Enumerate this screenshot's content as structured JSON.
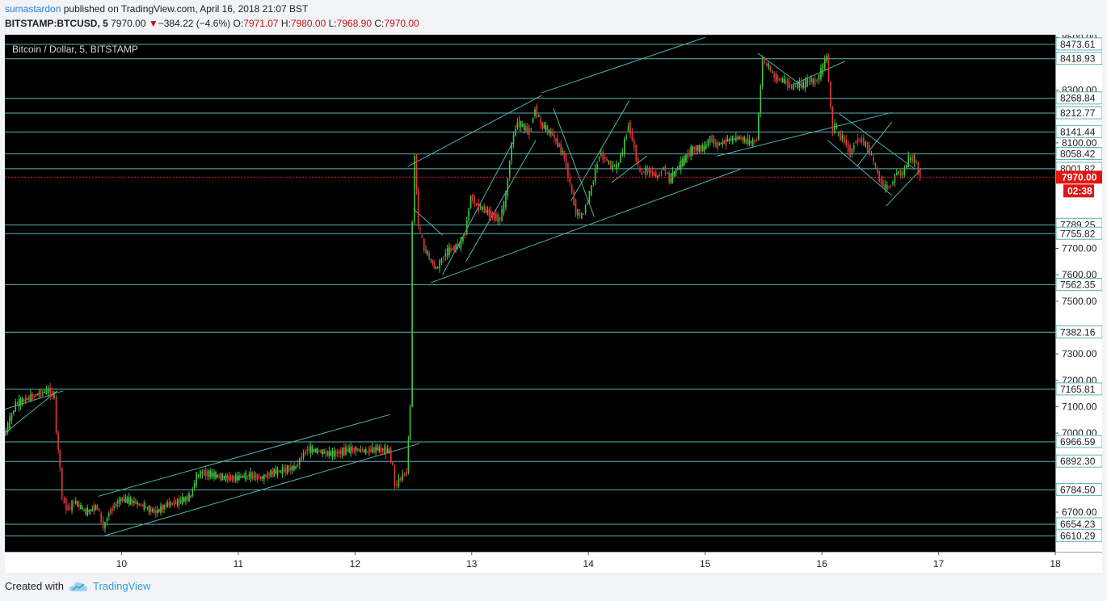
{
  "header": {
    "author": "sumastardon",
    "published": "published on TradingView.com, April 16, 2018 21:07 BST",
    "symbol": "BITSTAMP:BTCUSD, 5",
    "last": "7970.00",
    "change_arrow": "▼",
    "change": "−384.22 (−4.6%)",
    "o_label": "O:",
    "o_value": "7971.07",
    "h_label": "H:",
    "h_value": "7980.00",
    "l_label": "L:",
    "l_value": "7968.90",
    "c_label": "C:",
    "c_value": "7970.00"
  },
  "footer": {
    "created_with": "Created with",
    "brand": "TradingView"
  },
  "chart_data": {
    "type": "line",
    "title": "Bitcoin / Dollar, 5, BITSTAMP",
    "xlabel": "",
    "ylabel": "",
    "xlim": [
      9.0,
      18.0
    ],
    "ylim": [
      6550,
      8510
    ],
    "x_ticks": [
      "10",
      "11",
      "12",
      "13",
      "14",
      "15",
      "16",
      "17",
      "18"
    ],
    "x_tick_values": [
      10,
      11,
      12,
      13,
      14,
      15,
      16,
      17,
      18
    ],
    "y_ticks": [
      "8500.00",
      "8300.00",
      "8100.00",
      "7700.00",
      "7600.00",
      "7500.00",
      "7300.00",
      "7200.00",
      "7100.00",
      "7000.00",
      "6700.00"
    ],
    "y_tick_values": [
      8500,
      8300,
      8100,
      7700,
      7600,
      7500,
      7300,
      7200,
      7100,
      7000,
      6700
    ],
    "levels": [
      8473.61,
      8418.93,
      8268.84,
      8212.77,
      8141.44,
      8058.42,
      8001.82,
      7789.25,
      7755.82,
      7562.35,
      7382.16,
      7165.81,
      6966.59,
      6892.3,
      6784.5,
      6654.23,
      6610.29
    ],
    "level_labels": [
      "8473.61",
      "8418.93",
      "8268.84",
      "8212.77",
      "8141.44",
      "8058.42",
      "8001.82",
      "7789.25",
      "7755.82",
      "7562.35",
      "7382.16",
      "7165.81",
      "6966.59",
      "6892.30",
      "6784.50",
      "6654.23",
      "6610.29"
    ],
    "current_price": 7970.0,
    "current_price_label": "7970.00",
    "countdown_label": "02:38",
    "series": [
      {
        "x": [
          9.0,
          9.05,
          9.1,
          9.2,
          9.3,
          9.38,
          9.43,
          9.45,
          9.48,
          9.5,
          9.55,
          9.6,
          9.7,
          9.8,
          9.85,
          9.9,
          10.0,
          10.1,
          10.2,
          10.3,
          10.4,
          10.5,
          10.6,
          10.65,
          10.7,
          10.8,
          10.9,
          11.0,
          11.1,
          11.2,
          11.3,
          11.4,
          11.5,
          11.55,
          11.6,
          11.7,
          11.8,
          11.9,
          12.0,
          12.1,
          12.2,
          12.3,
          12.33,
          12.35,
          12.4,
          12.45,
          12.48,
          12.5,
          12.52,
          12.55,
          12.6,
          12.7,
          12.75,
          12.8,
          12.9,
          12.95,
          13.0,
          13.05,
          13.1,
          13.2,
          13.25,
          13.3,
          13.35,
          13.4,
          13.5,
          13.55,
          13.6,
          13.7,
          13.8,
          13.85,
          13.9,
          13.95,
          14.0,
          14.05,
          14.1,
          14.15,
          14.2,
          14.25,
          14.3,
          14.35,
          14.4,
          14.45,
          14.5,
          14.6,
          14.65,
          14.7,
          14.8,
          14.9,
          15.0,
          15.05,
          15.1,
          15.2,
          15.3,
          15.4,
          15.45,
          15.5,
          15.52,
          15.55,
          15.6,
          15.7,
          15.75,
          15.8,
          15.85,
          15.9,
          15.95,
          16.0,
          16.05,
          16.1,
          16.12,
          16.15,
          16.2,
          16.25,
          16.3,
          16.35,
          16.4,
          16.45,
          16.5,
          16.55,
          16.6,
          16.65,
          16.7,
          16.75,
          16.8,
          16.85
        ],
        "values": [
          6990,
          7050,
          7110,
          7130,
          7150,
          7160,
          7140,
          7000,
          6870,
          6750,
          6710,
          6740,
          6700,
          6720,
          6640,
          6700,
          6750,
          6740,
          6720,
          6700,
          6730,
          6740,
          6760,
          6840,
          6850,
          6840,
          6830,
          6830,
          6840,
          6830,
          6850,
          6860,
          6870,
          6910,
          6940,
          6930,
          6920,
          6930,
          6940,
          6930,
          6940,
          6930,
          6870,
          6800,
          6830,
          6850,
          7100,
          7800,
          8050,
          7790,
          7700,
          7620,
          7660,
          7690,
          7710,
          7760,
          7900,
          7860,
          7850,
          7820,
          7810,
          7900,
          8100,
          8180,
          8140,
          8230,
          8170,
          8130,
          8050,
          7940,
          7840,
          7820,
          7880,
          7960,
          8060,
          8040,
          8010,
          8010,
          8070,
          8170,
          8080,
          7980,
          8000,
          7970,
          8010,
          7960,
          8020,
          8080,
          8080,
          8120,
          8090,
          8110,
          8120,
          8100,
          8110,
          8420,
          8400,
          8390,
          8350,
          8330,
          8310,
          8320,
          8320,
          8340,
          8330,
          8370,
          8430,
          8140,
          8170,
          8130,
          8110,
          8060,
          8110,
          8110,
          8080,
          8030,
          7960,
          7930,
          7940,
          7990,
          7980,
          8040,
          8040,
          7970
        ]
      }
    ],
    "trendlines": [
      [
        9.0,
        7000,
        9.45,
        7160
      ],
      [
        9.0,
        7090,
        9.5,
        7160
      ],
      [
        9.85,
        6610,
        12.55,
        6960
      ],
      [
        9.8,
        6760,
        12.3,
        7070
      ],
      [
        12.65,
        7570,
        15.3,
        8000
      ],
      [
        12.45,
        8010,
        13.6,
        8280
      ],
      [
        13.6,
        8290,
        15.0,
        8500
      ],
      [
        15.1,
        8050,
        16.6,
        8215
      ],
      [
        12.5,
        7850,
        12.75,
        7750
      ],
      [
        12.75,
        7600,
        13.35,
        8100
      ],
      [
        12.95,
        7650,
        13.55,
        8110
      ],
      [
        13.7,
        8230,
        14.05,
        7820
      ],
      [
        13.85,
        7880,
        14.35,
        8260
      ],
      [
        14.2,
        7950,
        14.5,
        8050
      ],
      [
        15.45,
        8440,
        15.85,
        8310
      ],
      [
        15.75,
        8320,
        16.2,
        8410
      ],
      [
        16.15,
        8210,
        16.8,
        8000
      ],
      [
        16.05,
        8110,
        16.6,
        7900
      ],
      [
        16.3,
        8010,
        16.6,
        8180
      ],
      [
        16.55,
        7860,
        16.85,
        8000
      ]
    ],
    "colors": {
      "background": "#000000",
      "level": "#5fb3b9",
      "trend": "#4fb3a4",
      "up_candle": "#43c443",
      "down_candle": "#e03a3a",
      "price_line": "#e02020",
      "price_tag": "#e01515"
    },
    "grid": false,
    "legend": "none"
  }
}
